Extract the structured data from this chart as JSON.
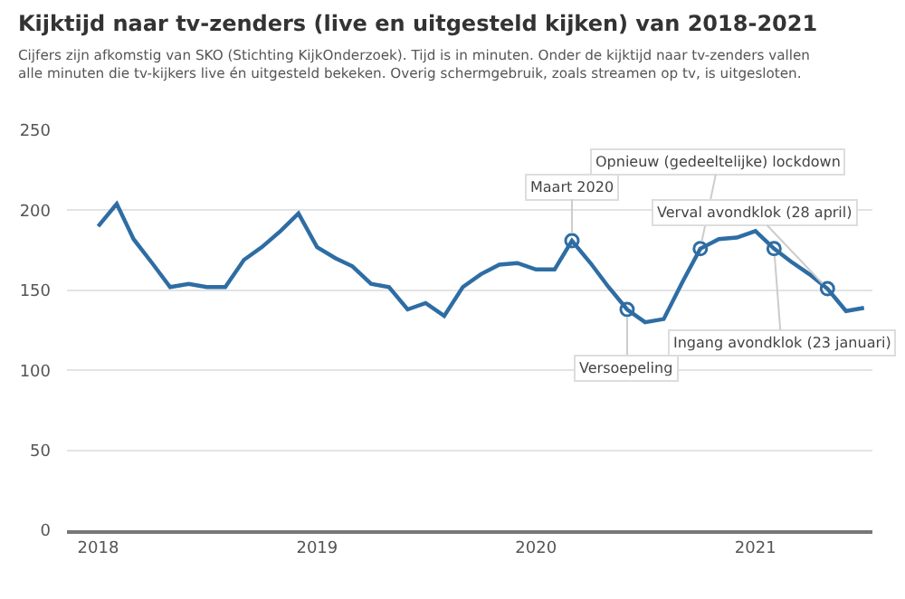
{
  "chart_data": {
    "type": "line",
    "title": "Kijktijd naar tv-zenders (live en uitgesteld kijken) van 2018-2021",
    "subtitle": "Cijfers zijn afkomstig van SKO (Stichting KijkOnderzoek). Tijd is in minuten. Onder de kijktijd naar tv-zenders vallen alle minuten die tv-kijkers live én uitgesteld bekeken. Overig schermgebruik, zoals streamen op tv, is uitgesloten.",
    "x": [
      "2018-01",
      "2018-02",
      "2018-03",
      "2018-04",
      "2018-05",
      "2018-06",
      "2018-07",
      "2018-08",
      "2018-09",
      "2018-10",
      "2018-11",
      "2018-12",
      "2019-01",
      "2019-02",
      "2019-03",
      "2019-04",
      "2019-05",
      "2019-06",
      "2019-07",
      "2019-08",
      "2019-09",
      "2019-10",
      "2019-11",
      "2019-12",
      "2020-01",
      "2020-02",
      "2020-03",
      "2020-04",
      "2020-05",
      "2020-06",
      "2020-07",
      "2020-08",
      "2020-09",
      "2020-10",
      "2020-11",
      "2020-12",
      "2021-01",
      "2021-02",
      "2021-03",
      "2021-04",
      "2021-05",
      "2021-06",
      "2021-07"
    ],
    "series": [
      {
        "color": "#2e6da4",
        "values": [
          190,
          204,
          182,
          167,
          152,
          154,
          152,
          152,
          169,
          177,
          187,
          198,
          177,
          170,
          165,
          154,
          152,
          138,
          142,
          134,
          152,
          160,
          166,
          167,
          163,
          163,
          181,
          167,
          152,
          138,
          130,
          132,
          155,
          176,
          182,
          183,
          187,
          176,
          168,
          160,
          151,
          137,
          139
        ]
      }
    ],
    "xlim": [
      "2017-11-10",
      "2021-07-15"
    ],
    "xticks": [
      "2018",
      "2019",
      "2020",
      "2021"
    ],
    "ylim": [
      0,
      250
    ],
    "yticks": [
      0,
      50,
      100,
      150,
      200,
      250
    ],
    "grid": "y",
    "marker": "none",
    "line_style": "solid",
    "annotations": [
      {
        "text": "Maart 2020",
        "x": "2020-03",
        "y": 181
      },
      {
        "text": "Versoepeling",
        "x": "2020-06",
        "y": 138
      },
      {
        "text": "Opnieuw (gedeeltelijke) lockdown",
        "x": "2020-10",
        "y": 176
      },
      {
        "text": "Ingang avondklok (23 januari)",
        "x": "2021-02",
        "y": 176
      },
      {
        "text": "Verval avondklok (28 april)",
        "x": "2021-05",
        "y": 151
      }
    ]
  }
}
